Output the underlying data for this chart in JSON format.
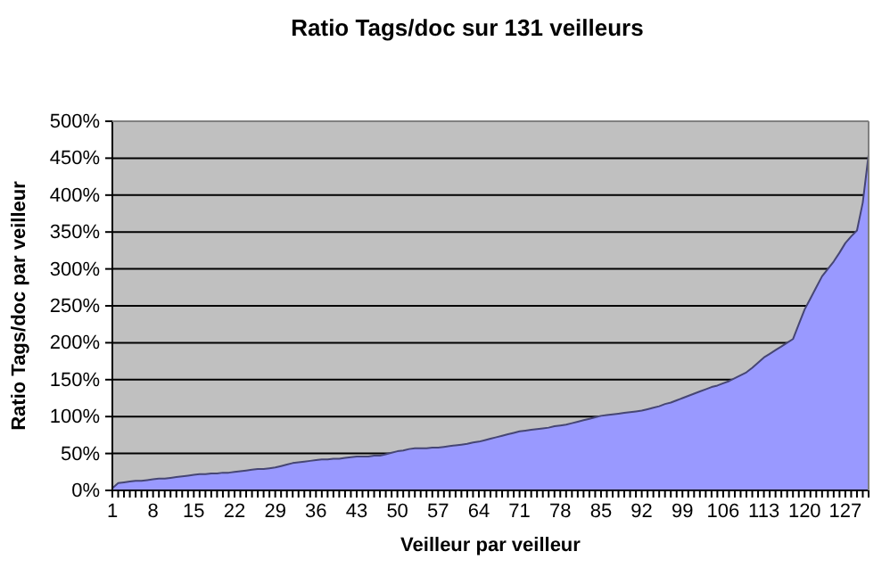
{
  "chart_data": {
    "type": "area",
    "title": "Ratio Tags/doc sur 131 veilleurs",
    "xlabel": "Veilleur par veilleur",
    "ylabel": "Ratio Tags/doc par veilleur",
    "categories": [
      "1",
      null,
      null,
      null,
      null,
      null,
      null,
      "8",
      null,
      null,
      null,
      null,
      null,
      null,
      "15",
      null,
      null,
      null,
      null,
      null,
      null,
      "22",
      null,
      null,
      null,
      null,
      null,
      null,
      "29",
      null,
      null,
      null,
      null,
      null,
      null,
      "36",
      null,
      null,
      null,
      null,
      null,
      null,
      "43",
      null,
      null,
      null,
      null,
      null,
      null,
      "50",
      null,
      null,
      null,
      null,
      null,
      null,
      "57",
      null,
      null,
      null,
      null,
      null,
      null,
      "64",
      null,
      null,
      null,
      null,
      null,
      null,
      "71",
      null,
      null,
      null,
      null,
      null,
      null,
      "78",
      null,
      null,
      null,
      null,
      null,
      null,
      "85",
      null,
      null,
      null,
      null,
      null,
      null,
      "92",
      null,
      null,
      null,
      null,
      null,
      null,
      "99",
      null,
      null,
      null,
      null,
      null,
      null,
      "106",
      null,
      null,
      null,
      null,
      null,
      null,
      "113",
      null,
      null,
      null,
      null,
      null,
      null,
      "120",
      null,
      null,
      null,
      null,
      null,
      null,
      "127",
      null,
      null,
      null,
      null
    ],
    "series": [
      {
        "color": "#9999ff",
        "values": [
          3,
          10,
          11,
          12,
          13,
          13,
          14,
          15,
          16,
          16,
          17,
          18,
          19,
          20,
          21,
          22,
          22,
          23,
          23,
          24,
          24,
          25,
          26,
          27,
          28,
          29,
          29,
          30,
          31,
          33,
          35,
          37,
          38,
          39,
          40,
          41,
          42,
          42,
          43,
          43,
          44,
          45,
          46,
          46,
          46,
          47,
          47,
          49,
          51,
          53,
          54,
          56,
          57,
          57,
          57,
          58,
          58,
          59,
          60,
          61,
          62,
          63,
          65,
          66,
          68,
          70,
          72,
          74,
          76,
          78,
          80,
          81,
          82,
          83,
          84,
          85,
          87,
          88,
          89,
          91,
          93,
          95,
          97,
          99,
          101,
          102,
          103,
          104,
          105,
          106,
          107,
          108,
          110,
          112,
          114,
          117,
          119,
          122,
          125,
          128,
          131,
          134,
          137,
          140,
          142,
          145,
          148,
          152,
          156,
          160,
          166,
          173,
          180,
          185,
          190,
          195,
          200,
          205,
          225,
          245,
          260,
          275,
          290,
          300,
          310,
          322,
          335,
          344,
          352,
          390,
          455
        ]
      }
    ],
    "ylim": [
      0,
      500
    ],
    "yticks": [
      {
        "value": 0,
        "label": "0%"
      },
      {
        "value": 50,
        "label": "50%"
      },
      {
        "value": 100,
        "label": "100%"
      },
      {
        "value": 150,
        "label": "150%"
      },
      {
        "value": 200,
        "label": "200%"
      },
      {
        "value": 250,
        "label": "250%"
      },
      {
        "value": 300,
        "label": "300%"
      },
      {
        "value": 350,
        "label": "350%"
      },
      {
        "value": 400,
        "label": "400%"
      },
      {
        "value": 450,
        "label": "450%"
      },
      {
        "value": 500,
        "label": "500%"
      }
    ],
    "grid": "y"
  }
}
